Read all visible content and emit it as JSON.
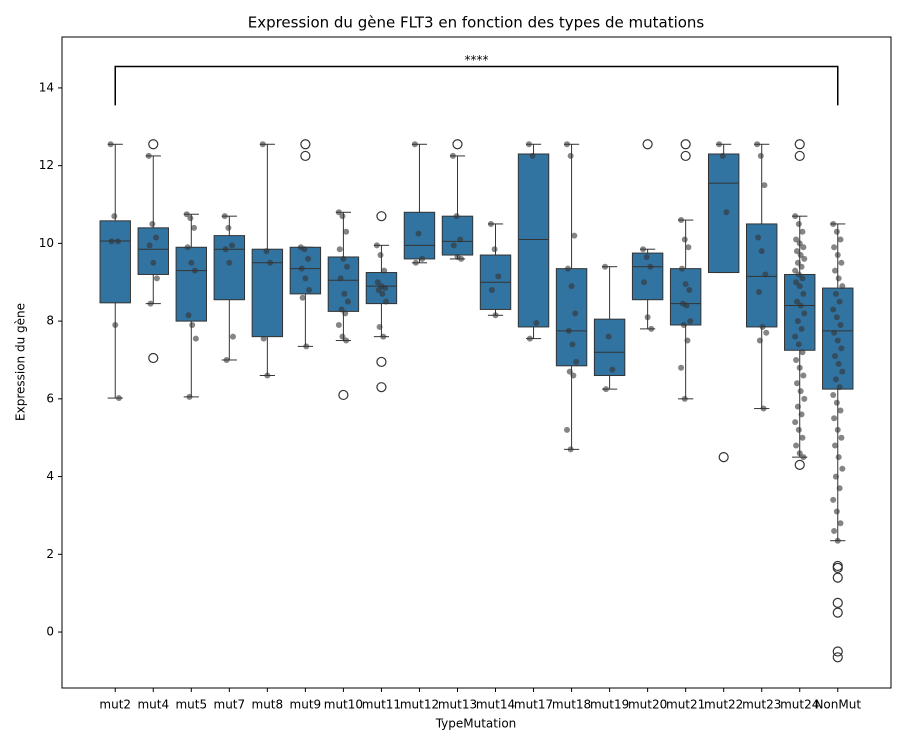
{
  "chart_data": {
    "type": "box",
    "title": "Expression du gène FLT3 en fonction des types de mutations",
    "x_label": "TypeMutation",
    "y_label": "Expression du gène",
    "color": "#3274a1",
    "point_color": "#333333",
    "ylim": [
      -1.44,
      15.31
    ],
    "yticks": [
      0,
      2,
      4,
      6,
      8,
      10,
      12,
      14
    ],
    "annotation": {
      "text": "****",
      "y": 14.55,
      "y_end": 13.55
    },
    "categories": [
      "mut2",
      "mut4",
      "mut5",
      "mut7",
      "mut8",
      "mut9",
      "mut10",
      "mut11",
      "mut12",
      "mut13",
      "mut14",
      "mut17",
      "mut18",
      "mut19",
      "mut20",
      "mut21",
      "mut22",
      "mut23",
      "mut24",
      "NonMut"
    ],
    "boxes": [
      {
        "whisker_low": 6.02,
        "q1": 8.47,
        "median": 10.06,
        "q3": 10.58,
        "whisker_high": 12.55,
        "outliers": [],
        "points": [
          12.55,
          10.7,
          10.05,
          10.05,
          7.9,
          6.02
        ]
      },
      {
        "whisker_low": 8.45,
        "q1": 9.2,
        "median": 9.85,
        "q3": 10.4,
        "whisker_high": 12.25,
        "outliers": [
          12.55,
          7.05
        ],
        "points": [
          12.25,
          10.5,
          10.15,
          9.95,
          9.5,
          9.1,
          8.45
        ]
      },
      {
        "whisker_low": 6.05,
        "q1": 8.0,
        "median": 9.3,
        "q3": 9.9,
        "whisker_high": 10.75,
        "outliers": [],
        "points": [
          10.75,
          10.65,
          10.4,
          9.9,
          9.5,
          9.3,
          8.15,
          7.9,
          7.55,
          6.05
        ]
      },
      {
        "whisker_low": 7.0,
        "q1": 8.55,
        "median": 9.85,
        "q3": 10.2,
        "whisker_high": 10.7,
        "outliers": [],
        "points": [
          10.7,
          10.4,
          9.95,
          9.85,
          9.5,
          7.6,
          7.0
        ]
      },
      {
        "whisker_low": 6.6,
        "q1": 7.6,
        "median": 9.5,
        "q3": 9.85,
        "whisker_high": 12.55,
        "outliers": [],
        "points": [
          12.55,
          9.8,
          9.5,
          7.55,
          6.6
        ]
      },
      {
        "whisker_low": 7.35,
        "q1": 8.7,
        "median": 9.35,
        "q3": 9.9,
        "whisker_high": 9.9,
        "outliers": [
          12.55,
          12.25
        ],
        "points": [
          9.9,
          9.85,
          9.6,
          9.35,
          9.1,
          8.8,
          8.6,
          7.35
        ]
      },
      {
        "whisker_low": 7.5,
        "q1": 8.25,
        "median": 9.05,
        "q3": 9.65,
        "whisker_high": 10.8,
        "outliers": [
          6.1
        ],
        "points": [
          10.8,
          10.7,
          10.3,
          9.85,
          9.6,
          9.4,
          9.1,
          8.7,
          8.5,
          8.3,
          8.2,
          7.9,
          7.6,
          7.5
        ]
      },
      {
        "whisker_low": 7.6,
        "q1": 8.45,
        "median": 8.9,
        "q3": 9.25,
        "whisker_high": 9.95,
        "outliers": [
          10.7,
          6.95,
          6.3
        ],
        "points": [
          9.95,
          9.7,
          9.3,
          9.0,
          8.9,
          8.85,
          8.8,
          8.7,
          8.5,
          7.85,
          7.6
        ]
      },
      {
        "whisker_low": 9.5,
        "q1": 9.6,
        "median": 9.95,
        "q3": 10.8,
        "whisker_high": 12.55,
        "outliers": [],
        "points": [
          12.55,
          10.25,
          9.6,
          9.5
        ]
      },
      {
        "whisker_low": 9.6,
        "q1": 9.7,
        "median": 10.05,
        "q3": 10.7,
        "whisker_high": 12.25,
        "outliers": [
          12.55
        ],
        "points": [
          12.25,
          10.7,
          10.1,
          9.95,
          9.65,
          9.6
        ]
      },
      {
        "whisker_low": 8.15,
        "q1": 8.3,
        "median": 9.0,
        "q3": 9.7,
        "whisker_high": 10.5,
        "outliers": [],
        "points": [
          10.5,
          9.85,
          9.15,
          8.8,
          8.15
        ]
      },
      {
        "whisker_low": 7.55,
        "q1": 7.85,
        "median": 10.1,
        "q3": 12.3,
        "whisker_high": 12.55,
        "outliers": [],
        "points": [
          12.55,
          12.25,
          7.95,
          7.55
        ]
      },
      {
        "whisker_low": 4.7,
        "q1": 6.85,
        "median": 7.75,
        "q3": 9.35,
        "whisker_high": 12.55,
        "outliers": [],
        "points": [
          12.55,
          12.25,
          10.2,
          9.35,
          8.9,
          8.2,
          7.75,
          7.4,
          6.95,
          6.7,
          6.6,
          5.2,
          4.7
        ]
      },
      {
        "whisker_low": 6.25,
        "q1": 6.6,
        "median": 7.2,
        "q3": 8.05,
        "whisker_high": 9.4,
        "outliers": [],
        "points": [
          9.4,
          7.6,
          6.75,
          6.25
        ]
      },
      {
        "whisker_low": 7.8,
        "q1": 8.55,
        "median": 9.4,
        "q3": 9.75,
        "whisker_high": 9.85,
        "outliers": [
          12.55
        ],
        "points": [
          9.85,
          9.65,
          9.4,
          9.0,
          8.1,
          7.8
        ]
      },
      {
        "whisker_low": 6.0,
        "q1": 7.9,
        "median": 8.45,
        "q3": 9.35,
        "whisker_high": 10.6,
        "outliers": [
          12.55,
          12.25
        ],
        "points": [
          10.6,
          10.1,
          9.9,
          9.35,
          8.95,
          8.8,
          8.45,
          8.4,
          8.0,
          7.9,
          7.5,
          6.8,
          6.0
        ]
      },
      {
        "whisker_low": 9.25,
        "q1": 9.25,
        "median": 11.55,
        "q3": 12.3,
        "whisker_high": 12.55,
        "outliers": [
          4.5
        ],
        "points": [
          12.55,
          12.25,
          10.8
        ]
      },
      {
        "whisker_low": 5.75,
        "q1": 7.85,
        "median": 9.15,
        "q3": 10.5,
        "whisker_high": 12.55,
        "outliers": [],
        "points": [
          12.55,
          12.25,
          11.5,
          10.15,
          9.8,
          9.2,
          8.75,
          7.85,
          7.7,
          7.5,
          5.75
        ]
      },
      {
        "whisker_low": 4.5,
        "q1": 7.25,
        "median": 8.4,
        "q3": 9.2,
        "whisker_high": 10.7,
        "outliers": [
          12.55,
          12.25,
          4.3
        ],
        "points": [
          10.7,
          10.5,
          10.3,
          10.1,
          10.0,
          9.9,
          9.8,
          9.7,
          9.6,
          9.5,
          9.4,
          9.3,
          9.2,
          9.1,
          9.0,
          8.9,
          8.7,
          8.5,
          8.4,
          8.2,
          8.0,
          7.8,
          7.6,
          7.4,
          7.2,
          7.0,
          6.8,
          6.6,
          6.4,
          6.2,
          6.0,
          5.8,
          5.6,
          5.4,
          5.2,
          5.0,
          4.8,
          4.6,
          4.5
        ]
      },
      {
        "whisker_low": 2.35,
        "q1": 6.25,
        "median": 7.75,
        "q3": 8.85,
        "whisker_high": 10.5,
        "outliers": [
          1.7,
          1.65,
          1.4,
          0.75,
          0.5,
          -0.5,
          -0.65
        ],
        "points": [
          10.5,
          10.3,
          10.1,
          9.9,
          9.7,
          9.5,
          9.3,
          9.1,
          8.9,
          8.7,
          8.5,
          8.3,
          8.1,
          7.9,
          7.7,
          7.5,
          7.3,
          7.1,
          6.9,
          6.7,
          6.5,
          6.3,
          6.1,
          5.9,
          5.7,
          5.5,
          5.2,
          5.0,
          4.8,
          4.5,
          4.2,
          4.0,
          3.7,
          3.4,
          3.1,
          2.8,
          2.6,
          2.35
        ]
      }
    ]
  }
}
